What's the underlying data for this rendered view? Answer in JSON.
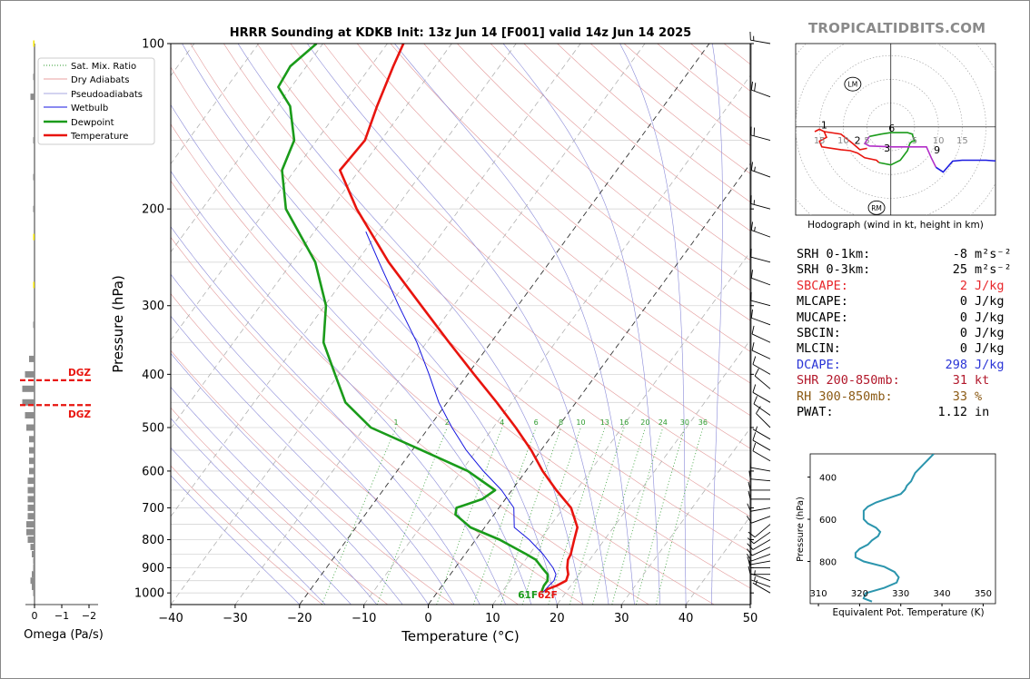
{
  "title": "HRRR Sounding at KDKB Init: 13z Jun 14 [F001] valid 14z Jun 14 2025",
  "brand": "TROPICALTIDBITS.COM",
  "skewt": {
    "xlabel": "Temperature (°C)",
    "ylabel": "Pressure (hPa)",
    "xlim": [
      -40,
      50
    ],
    "ylim": [
      1050,
      100
    ],
    "x_ticks": [
      "−40",
      "−30",
      "−20",
      "−10",
      "0",
      "10",
      "20",
      "30",
      "40",
      "50"
    ],
    "y_ticks": [
      "100",
      "200",
      "300",
      "400",
      "500",
      "600",
      "700",
      "800",
      "900",
      "1000"
    ],
    "legend": [
      "Sat. Mix. Ratio",
      "Dry Adiabats",
      "Pseudoadiabats",
      "Wetbulb",
      "Dewpoint",
      "Temperature"
    ],
    "mixing_ratio_labels": [
      "1",
      "2",
      "4",
      "6",
      "8",
      "10",
      "13",
      "16",
      "20",
      "24",
      "30",
      "36"
    ],
    "surface_dewpoint_label": "61F",
    "surface_temp_label": "62F",
    "dgz_label": "DGZ",
    "dgz_top_hPa": 410,
    "dgz_bottom_hPa": 455
  },
  "omega": {
    "xlabel": "Omega (Pa/s)",
    "x_ticks": [
      "0",
      "−1",
      "−2"
    ]
  },
  "hodograph": {
    "caption": "Hodograph (wind in kt, height in km)",
    "ring_labels": [
      "5",
      "10",
      "15"
    ],
    "neg_ring_labels": [
      "15",
      "10",
      "5"
    ],
    "height_labels": [
      "1",
      "2",
      "3",
      "6",
      "9"
    ],
    "lm_label": "LM",
    "rm_label": "RM"
  },
  "stats": [
    {
      "label": "SRH 0-1km:",
      "value": "-8",
      "unit": "m²s⁻²",
      "color": "#000000"
    },
    {
      "label": "SRH 0-3km:",
      "value": "25",
      "unit": "m²s⁻²",
      "color": "#000000"
    },
    {
      "label": "SBCAPE:",
      "value": "2",
      "unit": "J/kg",
      "color": "#e8272b"
    },
    {
      "label": "MLCAPE:",
      "value": "0",
      "unit": "J/kg",
      "color": "#000000"
    },
    {
      "label": "MUCAPE:",
      "value": "0",
      "unit": "J/kg",
      "color": "#000000"
    },
    {
      "label": "SBCIN:",
      "value": "0",
      "unit": "J/kg",
      "color": "#000000"
    },
    {
      "label": "MLCIN:",
      "value": "0",
      "unit": "J/kg",
      "color": "#000000"
    },
    {
      "label": "DCAPE:",
      "value": "298",
      "unit": "J/kg",
      "color": "#2a34d6"
    },
    {
      "label": "SHR 200-850mb:",
      "value": "31",
      "unit": "kt",
      "color": "#b2182b"
    },
    {
      "label": "RH 300-850mb:",
      "value": "33",
      "unit": "%",
      "color": "#8b5a14"
    },
    {
      "label": "PWAT:",
      "value": "1.12",
      "unit": "in",
      "color": "#000000"
    }
  ],
  "theta_e": {
    "xlabel": "Equivalent Pot. Temperature (K)",
    "ylabel": "Pressure (hPa)",
    "x_ticks": [
      "310",
      "320",
      "330",
      "340",
      "350"
    ],
    "y_ticks": [
      "400",
      "600",
      "800"
    ]
  },
  "chart_data": [
    {
      "type": "line",
      "title": "HRRR Sounding at KDKB Init: 13z Jun 14 [F001] valid 14z Jun 14 2025",
      "xlabel": "Temperature (°C)",
      "ylabel": "Pressure (hPa)",
      "xlim": [
        -40,
        50
      ],
      "ylim": [
        1050,
        100
      ],
      "y_scale": "log",
      "skew": "skew-T",
      "legend_position": "top-left",
      "series": [
        {
          "name": "Temperature",
          "color": "#e8140e",
          "points": [
            [
              998,
              16.8
            ],
            [
              985,
              16.7
            ],
            [
              970,
              17.8
            ],
            [
              950,
              18.7
            ],
            [
              925,
              18.3
            ],
            [
              900,
              17.4
            ],
            [
              870,
              16.6
            ],
            [
              850,
              16.4
            ],
            [
              800,
              15.3
            ],
            [
              760,
              14.4
            ],
            [
              700,
              11.2
            ],
            [
              650,
              6.9
            ],
            [
              600,
              2.6
            ],
            [
              550,
              -1.5
            ],
            [
              500,
              -6.5
            ],
            [
              450,
              -12.3
            ],
            [
              400,
              -19.0
            ],
            [
              350,
              -26.5
            ],
            [
              300,
              -35.0
            ],
            [
              250,
              -45.0
            ],
            [
              200,
              -56.0
            ],
            [
              170,
              -63.0
            ],
            [
              150,
              -62.5
            ],
            [
              130,
              -64.5
            ],
            [
              110,
              -66.5
            ],
            [
              100,
              -67.5
            ]
          ]
        },
        {
          "name": "Dewpoint",
          "color": "#1a9b1a",
          "points": [
            [
              998,
              16.2
            ],
            [
              985,
              16.0
            ],
            [
              970,
              15.8
            ],
            [
              950,
              15.8
            ],
            [
              925,
              15.1
            ],
            [
              900,
              13.5
            ],
            [
              870,
              11.6
            ],
            [
              850,
              9.5
            ],
            [
              800,
              3.7
            ],
            [
              760,
              -2.2
            ],
            [
              720,
              -6.0
            ],
            [
              700,
              -6.6
            ],
            [
              675,
              -3.6
            ],
            [
              650,
              -2.6
            ],
            [
              600,
              -9.0
            ],
            [
              550,
              -18.5
            ],
            [
              500,
              -29.0
            ],
            [
              450,
              -35.8
            ],
            [
              400,
              -40.6
            ],
            [
              350,
              -46.0
            ],
            [
              300,
              -49.8
            ],
            [
              250,
              -56.4
            ],
            [
              200,
              -67.0
            ],
            [
              170,
              -72.0
            ],
            [
              150,
              -73.5
            ],
            [
              130,
              -78.0
            ],
            [
              120,
              -82.0
            ],
            [
              110,
              -82.5
            ],
            [
              100,
              -81.0
            ]
          ]
        },
        {
          "name": "Wetbulb",
          "color": "#1414e0",
          "points": [
            [
              998,
              16.4
            ],
            [
              970,
              16.6
            ],
            [
              950,
              16.8
            ],
            [
              925,
              16.4
            ],
            [
              900,
              15.2
            ],
            [
              850,
              12.1
            ],
            [
              800,
              8.3
            ],
            [
              760,
              4.6
            ],
            [
              700,
              2.3
            ],
            [
              650,
              -1.6
            ],
            [
              600,
              -6.6
            ],
            [
              550,
              -11.6
            ],
            [
              500,
              -16.4
            ],
            [
              450,
              -21.3
            ],
            [
              400,
              -26.0
            ],
            [
              350,
              -31.5
            ],
            [
              300,
              -38.5
            ],
            [
              250,
              -46.5
            ],
            [
              220,
              -52.0
            ]
          ]
        }
      ]
    },
    {
      "type": "bar",
      "title": "",
      "xlabel": "Omega (Pa/s)",
      "xlim": [
        0.2,
        -2.0
      ],
      "orientation": "horizontal",
      "levels_hPa": [
        1000,
        975,
        950,
        925,
        900,
        875,
        850,
        825,
        800,
        775,
        750,
        725,
        700,
        675,
        650,
        625,
        600,
        575,
        550,
        525,
        500,
        475,
        450,
        425,
        400,
        375,
        325,
        275,
        225,
        200,
        175,
        150,
        125,
        115,
        100
      ],
      "values": [
        -0.05,
        -0.1,
        -0.15,
        -0.1,
        -0.05,
        -0.05,
        -0.1,
        -0.15,
        -0.25,
        -0.3,
        -0.3,
        -0.25,
        -0.25,
        -0.25,
        -0.25,
        -0.25,
        -0.2,
        -0.2,
        -0.2,
        -0.2,
        -0.3,
        -0.35,
        -0.45,
        -0.45,
        -0.35,
        -0.2,
        -0.05,
        -0.05,
        -0.05,
        -0.05,
        -0.05,
        -0.05,
        -0.15,
        -0.05,
        -0.05
      ],
      "colors": [
        "#8c8c8c",
        "#8c8c8c",
        "#8c8c8c",
        "#8c8c8c",
        "#8c8c8c",
        "#8c8c8c",
        "#8c8c8c",
        "#8c8c8c",
        "#8c8c8c",
        "#8c8c8c",
        "#8c8c8c",
        "#8c8c8c",
        "#8c8c8c",
        "#8c8c8c",
        "#8c8c8c",
        "#8c8c8c",
        "#8c8c8c",
        "#8c8c8c",
        "#8c8c8c",
        "#8c8c8c",
        "#8c8c8c",
        "#8c8c8c",
        "#8c8c8c",
        "#8c8c8c",
        "#8c8c8c",
        "#8c8c8c",
        "#8c8c8c",
        "#f5e600",
        "#f5e600",
        "#8c8c8c",
        "#8c8c8c",
        "#8c8c8c",
        "#8c8c8c",
        "#8c8c8c",
        "#f5e600"
      ]
    },
    {
      "type": "line",
      "title": "Hodograph (wind in kt, height in km)",
      "units": "kt",
      "xlim": [
        -20,
        22
      ],
      "ylim": [
        -18,
        17
      ],
      "segments": [
        {
          "color": "#e8140e",
          "points": [
            [
              -16,
              -1
            ],
            [
              -15,
              -0.5
            ],
            [
              -14,
              -1
            ],
            [
              -13.5,
              -2.2
            ],
            [
              -15,
              -3
            ],
            [
              -14.5,
              -4.2
            ],
            [
              -10.5,
              -4.8
            ],
            [
              -8.5,
              -5
            ],
            [
              -7,
              -5.5
            ],
            [
              -5.5,
              -6.5
            ],
            [
              -3,
              -7
            ],
            [
              -2.5,
              -7.5
            ]
          ]
        },
        {
          "color": "#e8140e",
          "points": [
            [
              -14,
              -1
            ],
            [
              -10.5,
              -1.5
            ],
            [
              -8,
              -3.5
            ],
            [
              -6.5,
              -4.8
            ],
            [
              -5,
              -4.5
            ]
          ]
        },
        {
          "color": "#1a9b1a",
          "points": [
            [
              -2.5,
              -7.5
            ],
            [
              0,
              -8
            ],
            [
              2,
              -7
            ],
            [
              3.5,
              -5
            ],
            [
              4,
              -3.5
            ],
            [
              4.5,
              -3
            ],
            [
              5,
              -3
            ],
            [
              4.5,
              -1.5
            ],
            [
              3.5,
              -1.2
            ],
            [
              0,
              -1.2
            ],
            [
              -2,
              -1.5
            ],
            [
              -4.5,
              -2
            ]
          ]
        },
        {
          "color": "#b22fc8",
          "points": [
            [
              -4.5,
              -2
            ],
            [
              -5.5,
              -3.5
            ],
            [
              -4.5,
              -4
            ],
            [
              0.5,
              -4.2
            ],
            [
              5,
              -4.2
            ],
            [
              7.5,
              -4.2
            ],
            [
              8.5,
              -6.5
            ],
            [
              9.5,
              -8.5
            ]
          ]
        },
        {
          "color": "#1a1ae0",
          "points": [
            [
              9.5,
              -8.5
            ],
            [
              11,
              -9.5
            ],
            [
              13,
              -7.2
            ],
            [
              15,
              -7
            ],
            [
              20,
              -7
            ],
            [
              24,
              -7.3
            ],
            [
              26,
              -7.8
            ]
          ]
        }
      ],
      "lm": [
        -8,
        9
      ],
      "rm": [
        -3,
        -17
      ]
    },
    {
      "type": "line",
      "title": "",
      "xlabel": "Equivalent Pot. Temperature (K)",
      "ylabel": "Pressure (hPa)",
      "xlim": [
        308,
        353
      ],
      "ylim": [
        1000,
        290
      ],
      "series": [
        {
          "name": "",
          "color": "#2b95ad",
          "points": [
            [
              990,
              323
            ],
            [
              975,
              321
            ],
            [
              950,
              321.5
            ],
            [
              925,
              326
            ],
            [
              900,
              329
            ],
            [
              875,
              329.5
            ],
            [
              850,
              328.5
            ],
            [
              825,
              326
            ],
            [
              800,
              321
            ],
            [
              780,
              319
            ],
            [
              760,
              319
            ],
            [
              740,
              320
            ],
            [
              720,
              322
            ],
            [
              700,
              323
            ],
            [
              680,
              324.5
            ],
            [
              660,
              325
            ],
            [
              640,
              324
            ],
            [
              620,
              322
            ],
            [
              600,
              321
            ],
            [
              580,
              321
            ],
            [
              560,
              321
            ],
            [
              540,
              322
            ],
            [
              520,
              324
            ],
            [
              500,
              327
            ],
            [
              480,
              330
            ],
            [
              460,
              331
            ],
            [
              440,
              331.5
            ],
            [
              420,
              332.5
            ],
            [
              400,
              333
            ],
            [
              380,
              333.5
            ],
            [
              360,
              334.5
            ],
            [
              340,
              335.5
            ],
            [
              320,
              336.5
            ],
            [
              300,
              337.5
            ],
            [
              290,
              338
            ]
          ]
        }
      ]
    },
    {
      "type": "scatter",
      "title": "",
      "description_of": "wind barbs",
      "levels_hPa": [
        1000,
        975,
        950,
        925,
        900,
        875,
        850,
        825,
        800,
        775,
        750,
        725,
        700,
        675,
        650,
        625,
        600,
        575,
        550,
        525,
        500,
        475,
        450,
        425,
        400,
        375,
        350,
        325,
        300,
        275,
        250,
        225,
        200,
        175,
        150,
        125,
        100
      ],
      "speed_kt": [
        5,
        5,
        5,
        10,
        10,
        10,
        10,
        10,
        10,
        10,
        10,
        10,
        10,
        10,
        10,
        10,
        10,
        10,
        10,
        5,
        10,
        10,
        10,
        10,
        10,
        10,
        10,
        10,
        10,
        10,
        10,
        15,
        15,
        15,
        20,
        20,
        15
      ],
      "dir_deg": [
        300,
        290,
        290,
        270,
        270,
        260,
        250,
        245,
        240,
        235,
        230,
        250,
        260,
        270,
        270,
        275,
        280,
        300,
        300,
        300,
        315,
        305,
        300,
        310,
        300,
        295,
        295,
        290,
        285,
        290,
        285,
        290,
        285,
        290,
        285,
        290,
        280
      ]
    }
  ]
}
